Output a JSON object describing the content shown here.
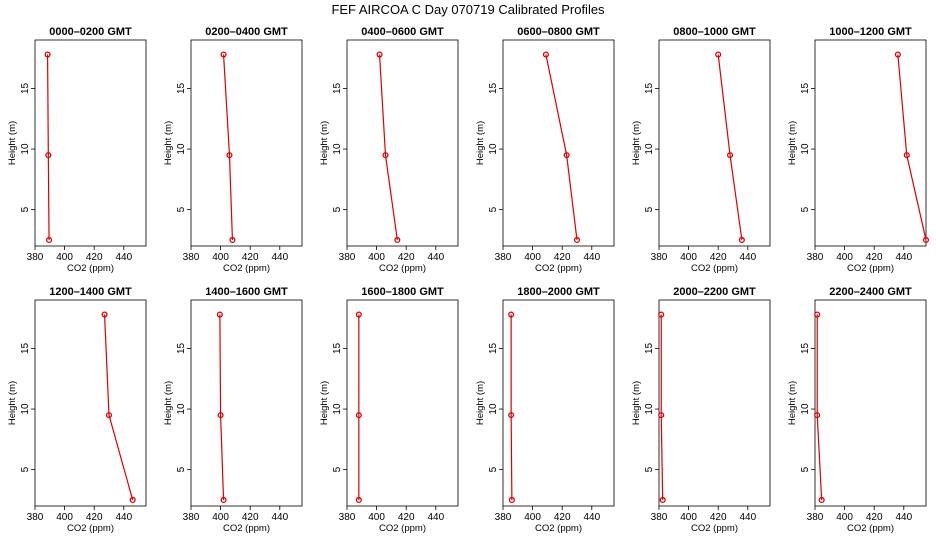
{
  "page": {
    "title": "FEF AIRCOA C  Day 070719  Calibrated Profiles"
  },
  "colors": {
    "series": "#dd0000",
    "axis": "#000000",
    "background": "#ffffff"
  },
  "chart_data": [
    {
      "type": "line",
      "title": "0000–0200 GMT",
      "xlabel": "CO2 (ppm)",
      "ylabel": "Height (m)",
      "xlim": [
        380,
        455
      ],
      "ylim": [
        2,
        19
      ],
      "xticks": [
        380,
        400,
        420,
        440
      ],
      "yticks": [
        5,
        10,
        15
      ],
      "grid": false,
      "series": [
        {
          "x": [
            389.5,
            389.0,
            388.5
          ],
          "y": [
            2.5,
            9.5,
            17.8
          ]
        }
      ]
    },
    {
      "type": "line",
      "title": "0200–0400 GMT",
      "xlabel": "CO2 (ppm)",
      "ylabel": "Height (m)",
      "xlim": [
        380,
        455
      ],
      "ylim": [
        2,
        19
      ],
      "xticks": [
        380,
        400,
        420,
        440
      ],
      "yticks": [
        5,
        10,
        15
      ],
      "grid": false,
      "series": [
        {
          "x": [
            408,
            406,
            402
          ],
          "y": [
            2.5,
            9.5,
            17.8
          ]
        }
      ]
    },
    {
      "type": "line",
      "title": "0400–0600 GMT",
      "xlabel": "CO2 (ppm)",
      "ylabel": "Height (m)",
      "xlim": [
        380,
        455
      ],
      "ylim": [
        2,
        19
      ],
      "xticks": [
        380,
        400,
        420,
        440
      ],
      "yticks": [
        5,
        10,
        15
      ],
      "grid": false,
      "series": [
        {
          "x": [
            414,
            406,
            402
          ],
          "y": [
            2.5,
            9.5,
            17.8
          ]
        }
      ]
    },
    {
      "type": "line",
      "title": "0600–0800 GMT",
      "xlabel": "CO2 (ppm)",
      "ylabel": "Height (m)",
      "xlim": [
        380,
        455
      ],
      "ylim": [
        2,
        19
      ],
      "xticks": [
        380,
        400,
        420,
        440
      ],
      "yticks": [
        5,
        10,
        15
      ],
      "grid": false,
      "series": [
        {
          "x": [
            430,
            423,
            409
          ],
          "y": [
            2.5,
            9.5,
            17.8
          ]
        }
      ]
    },
    {
      "type": "line",
      "title": "0800–1000 GMT",
      "xlabel": "CO2 (ppm)",
      "ylabel": "Height (m)",
      "xlim": [
        380,
        455
      ],
      "ylim": [
        2,
        19
      ],
      "xticks": [
        380,
        400,
        420,
        440
      ],
      "yticks": [
        5,
        10,
        15
      ],
      "grid": false,
      "series": [
        {
          "x": [
            436,
            428,
            420
          ],
          "y": [
            2.5,
            9.5,
            17.8
          ]
        }
      ]
    },
    {
      "type": "line",
      "title": "1000–1200 GMT",
      "xlabel": "CO2 (ppm)",
      "ylabel": "Height (m)",
      "xlim": [
        380,
        455
      ],
      "ylim": [
        2,
        19
      ],
      "xticks": [
        380,
        400,
        420,
        440
      ],
      "yticks": [
        5,
        10,
        15
      ],
      "grid": false,
      "series": [
        {
          "x": [
            455,
            442,
            436
          ],
          "y": [
            2.5,
            9.5,
            17.8
          ]
        }
      ]
    },
    {
      "type": "line",
      "title": "1200–1400 GMT",
      "xlabel": "CO2 (ppm)",
      "ylabel": "Height (m)",
      "xlim": [
        380,
        455
      ],
      "ylim": [
        2,
        19
      ],
      "xticks": [
        380,
        400,
        420,
        440
      ],
      "yticks": [
        5,
        10,
        15
      ],
      "grid": false,
      "series": [
        {
          "x": [
            446,
            430,
            427
          ],
          "y": [
            2.5,
            9.5,
            17.8
          ]
        }
      ]
    },
    {
      "type": "line",
      "title": "1400–1600 GMT",
      "xlabel": "CO2 (ppm)",
      "ylabel": "Height (m)",
      "xlim": [
        380,
        455
      ],
      "ylim": [
        2,
        19
      ],
      "xticks": [
        380,
        400,
        420,
        440
      ],
      "yticks": [
        5,
        10,
        15
      ],
      "grid": false,
      "series": [
        {
          "x": [
            402,
            400,
            399.5
          ],
          "y": [
            2.5,
            9.5,
            17.8
          ]
        }
      ]
    },
    {
      "type": "line",
      "title": "1600–1800 GMT",
      "xlabel": "CO2 (ppm)",
      "ylabel": "Height (m)",
      "xlim": [
        380,
        455
      ],
      "ylim": [
        2,
        19
      ],
      "xticks": [
        380,
        400,
        420,
        440
      ],
      "yticks": [
        5,
        10,
        15
      ],
      "grid": false,
      "series": [
        {
          "x": [
            388,
            388,
            388
          ],
          "y": [
            2.5,
            9.5,
            17.8
          ]
        }
      ]
    },
    {
      "type": "line",
      "title": "1800–2000 GMT",
      "xlabel": "CO2 (ppm)",
      "ylabel": "Height (m)",
      "xlim": [
        380,
        455
      ],
      "ylim": [
        2,
        19
      ],
      "xticks": [
        380,
        400,
        420,
        440
      ],
      "yticks": [
        5,
        10,
        15
      ],
      "grid": false,
      "series": [
        {
          "x": [
            386,
            385.5,
            385.5
          ],
          "y": [
            2.5,
            9.5,
            17.8
          ]
        }
      ]
    },
    {
      "type": "line",
      "title": "2000–2200 GMT",
      "xlabel": "CO2 (ppm)",
      "ylabel": "Height (m)",
      "xlim": [
        380,
        455
      ],
      "ylim": [
        2,
        19
      ],
      "xticks": [
        380,
        400,
        420,
        440
      ],
      "yticks": [
        5,
        10,
        15
      ],
      "grid": false,
      "series": [
        {
          "x": [
            382.5,
            381.5,
            381.5
          ],
          "y": [
            2.5,
            9.5,
            17.8
          ]
        }
      ]
    },
    {
      "type": "line",
      "title": "2200–2400 GMT",
      "xlabel": "CO2 (ppm)",
      "ylabel": "Height (m)",
      "xlim": [
        380,
        455
      ],
      "ylim": [
        2,
        19
      ],
      "xticks": [
        380,
        400,
        420,
        440
      ],
      "yticks": [
        5,
        10,
        15
      ],
      "grid": false,
      "series": [
        {
          "x": [
            384.5,
            381.5,
            381.5
          ],
          "y": [
            2.5,
            9.5,
            17.8
          ]
        }
      ]
    }
  ]
}
